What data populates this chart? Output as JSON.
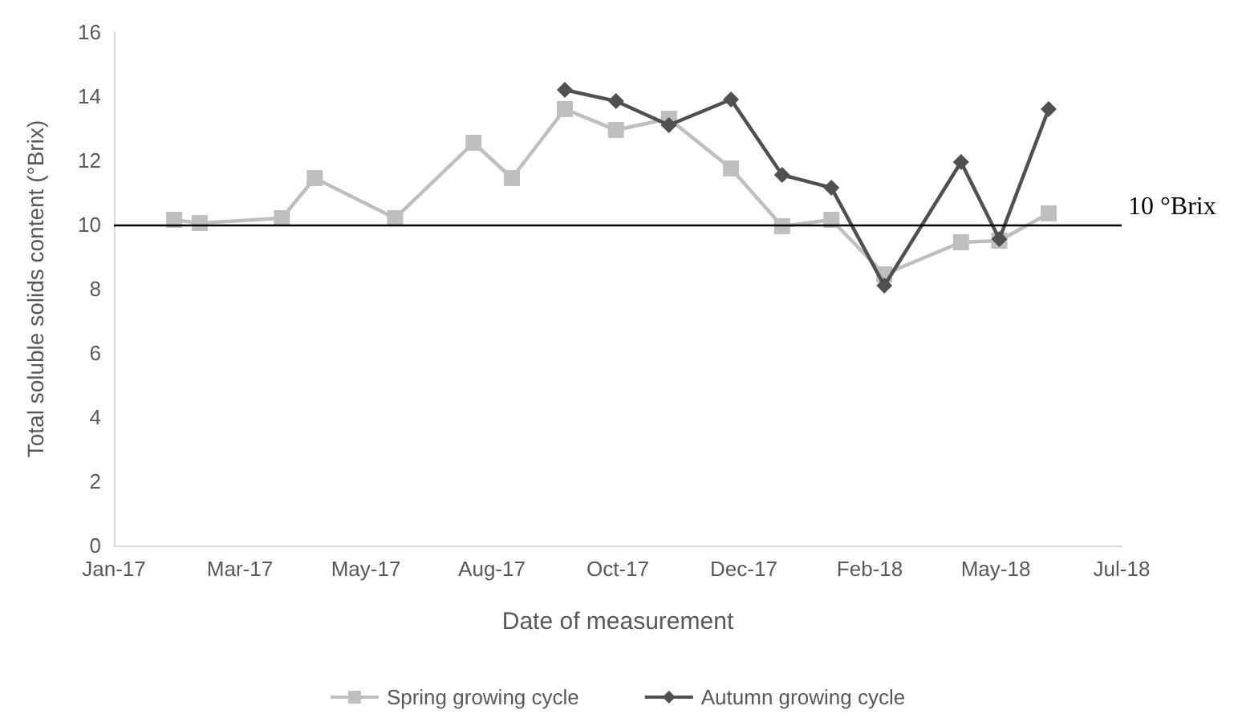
{
  "chart_data": {
    "type": "line",
    "xlabel": "Date of measurement",
    "ylabel": "Total soluble solids content (°Brix)",
    "xlim": [
      "2017-01-10",
      "2018-07-16"
    ],
    "xticks": [
      {
        "value": "2017-01-10",
        "label": "Jan-17"
      },
      {
        "value": "2017-03-20",
        "label": "Mar-17"
      },
      {
        "value": "2017-05-28",
        "label": "May-17"
      },
      {
        "value": "2017-08-05",
        "label": "Aug-17"
      },
      {
        "value": "2017-10-13",
        "label": "Oct-17"
      },
      {
        "value": "2017-12-21",
        "label": "Dec-17"
      },
      {
        "value": "2018-02-28",
        "label": "Feb-18"
      },
      {
        "value": "2018-05-08",
        "label": "May-18"
      },
      {
        "value": "2018-07-16",
        "label": "Jul-18"
      }
    ],
    "ylim": [
      0,
      16
    ],
    "yticks": [
      0,
      2,
      4,
      6,
      8,
      10,
      12,
      14,
      16
    ],
    "grid": false,
    "legend": "bottom",
    "series": [
      {
        "name": "Spring growing cycle",
        "color": "#bfbfbf",
        "marker": "square",
        "x": [
          "2017-02-12",
          "2017-02-26",
          "2017-04-12",
          "2017-04-30",
          "2017-06-13",
          "2017-07-26",
          "2017-08-16",
          "2017-09-14",
          "2017-10-12",
          "2017-11-10",
          "2017-12-14",
          "2018-01-11",
          "2018-02-07",
          "2018-03-08",
          "2018-04-19",
          "2018-05-10",
          "2018-06-06"
        ],
        "values": [
          10.15,
          10.05,
          10.2,
          11.45,
          10.2,
          12.55,
          11.45,
          13.6,
          12.95,
          13.3,
          11.75,
          9.95,
          10.15,
          8.45,
          9.45,
          9.5,
          10.35
        ]
      },
      {
        "name": "Autumn growing cycle",
        "color": "#505050",
        "marker": "diamond",
        "x": [
          "2017-09-14",
          "2017-10-12",
          "2017-11-10",
          "2017-12-14",
          "2018-01-11",
          "2018-02-07",
          "2018-03-08",
          "2018-04-19",
          "2018-05-10",
          "2018-06-06"
        ],
        "values": [
          14.2,
          13.85,
          13.1,
          13.9,
          11.55,
          11.15,
          8.1,
          11.95,
          9.55,
          13.6
        ]
      }
    ],
    "ref_lines": [
      {
        "axis": "y",
        "value": 10,
        "label": "10 °Brix",
        "color": "#000000"
      }
    ]
  }
}
